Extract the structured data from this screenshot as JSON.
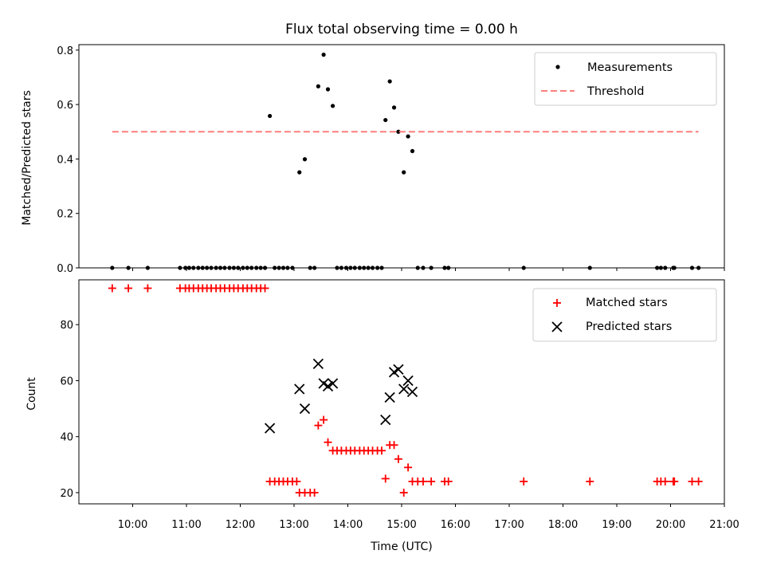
{
  "chart_data": [
    {
      "type": "scatter",
      "title": "Flux total observing time = 0.00 h",
      "xlabel": "",
      "ylabel": "Matched/Predicted stars",
      "xlim": [
        9.0,
        21.0
      ],
      "ylim": [
        0.0,
        0.82
      ],
      "yticks": [
        0.0,
        0.2,
        0.4,
        0.6,
        0.8
      ],
      "ytick_labels": [
        "0.0",
        "0.2",
        "0.4",
        "0.6",
        "0.8"
      ],
      "legend_position": "top-right",
      "grid": false,
      "series": [
        {
          "name": "Measurements",
          "kind": "scatter",
          "marker": "dot",
          "color": "#000000",
          "points": [
            [
              9.62,
              0
            ],
            [
              9.92,
              0
            ],
            [
              10.28,
              0
            ],
            [
              10.88,
              0
            ],
            [
              10.98,
              0
            ],
            [
              11.05,
              0
            ],
            [
              11.13,
              0
            ],
            [
              11.22,
              0
            ],
            [
              11.3,
              0
            ],
            [
              11.38,
              0
            ],
            [
              11.46,
              0
            ],
            [
              11.55,
              0
            ],
            [
              11.63,
              0
            ],
            [
              11.71,
              0
            ],
            [
              11.8,
              0
            ],
            [
              11.88,
              0
            ],
            [
              11.96,
              0
            ],
            [
              12.05,
              0
            ],
            [
              12.13,
              0
            ],
            [
              12.21,
              0
            ],
            [
              12.3,
              0
            ],
            [
              12.38,
              0
            ],
            [
              12.46,
              0
            ],
            [
              12.55,
              0.558
            ],
            [
              12.64,
              0
            ],
            [
              12.72,
              0
            ],
            [
              12.8,
              0
            ],
            [
              12.88,
              0
            ],
            [
              12.97,
              0
            ],
            [
              13.1,
              0.351
            ],
            [
              13.2,
              0.399
            ],
            [
              13.3,
              0
            ],
            [
              13.38,
              0
            ],
            [
              13.45,
              0.667
            ],
            [
              13.55,
              0.783
            ],
            [
              13.63,
              0.656
            ],
            [
              13.72,
              0.595
            ],
            [
              13.8,
              0
            ],
            [
              13.88,
              0
            ],
            [
              13.97,
              0
            ],
            [
              14.05,
              0
            ],
            [
              14.13,
              0
            ],
            [
              14.22,
              0
            ],
            [
              14.3,
              0
            ],
            [
              14.38,
              0
            ],
            [
              14.46,
              0
            ],
            [
              14.55,
              0
            ],
            [
              14.63,
              0
            ],
            [
              14.7,
              0.543
            ],
            [
              14.78,
              0.685
            ],
            [
              14.86,
              0.589
            ],
            [
              14.94,
              0.5
            ],
            [
              15.04,
              0.351
            ],
            [
              15.12,
              0.483
            ],
            [
              15.2,
              0.429
            ],
            [
              15.3,
              0
            ],
            [
              15.4,
              0
            ],
            [
              15.55,
              0
            ],
            [
              15.8,
              0
            ],
            [
              15.87,
              0
            ],
            [
              17.27,
              0
            ],
            [
              18.5,
              0
            ],
            [
              19.75,
              0
            ],
            [
              19.82,
              0
            ],
            [
              19.9,
              0
            ],
            [
              20.05,
              0
            ],
            [
              20.07,
              0
            ],
            [
              20.4,
              0
            ],
            [
              20.52,
              0
            ]
          ]
        },
        {
          "name": "Threshold",
          "kind": "line",
          "style": "dashed",
          "color": "#ff7f7f",
          "points": [
            [
              9.62,
              0.5
            ],
            [
              20.52,
              0.5
            ]
          ]
        }
      ]
    },
    {
      "type": "scatter",
      "title": "",
      "xlabel": "Time (UTC)",
      "ylabel": "Count",
      "xlim": [
        9.0,
        21.0
      ],
      "ylim": [
        16,
        96
      ],
      "yticks": [
        20,
        40,
        60,
        80
      ],
      "ytick_labels": [
        "20",
        "40",
        "60",
        "80"
      ],
      "xticks": [
        10,
        11,
        12,
        13,
        14,
        15,
        16,
        17,
        18,
        19,
        20,
        21
      ],
      "xtick_labels": [
        "10:00",
        "11:00",
        "12:00",
        "13:00",
        "14:00",
        "15:00",
        "16:00",
        "17:00",
        "18:00",
        "19:00",
        "20:00",
        "21:00"
      ],
      "legend_position": "top-right",
      "grid": false,
      "series": [
        {
          "name": "Matched stars",
          "kind": "scatter",
          "marker": "plus",
          "color": "#ff0000",
          "points": [
            [
              9.62,
              93
            ],
            [
              9.92,
              93
            ],
            [
              10.28,
              93
            ],
            [
              10.88,
              93
            ],
            [
              10.98,
              93
            ],
            [
              11.05,
              93
            ],
            [
              11.13,
              93
            ],
            [
              11.22,
              93
            ],
            [
              11.3,
              93
            ],
            [
              11.38,
              93
            ],
            [
              11.46,
              93
            ],
            [
              11.55,
              93
            ],
            [
              11.63,
              93
            ],
            [
              11.71,
              93
            ],
            [
              11.8,
              93
            ],
            [
              11.88,
              93
            ],
            [
              11.96,
              93
            ],
            [
              12.05,
              93
            ],
            [
              12.13,
              93
            ],
            [
              12.21,
              93
            ],
            [
              12.3,
              93
            ],
            [
              12.38,
              93
            ],
            [
              12.46,
              93
            ],
            [
              12.55,
              24
            ],
            [
              12.64,
              24
            ],
            [
              12.72,
              24
            ],
            [
              12.8,
              24
            ],
            [
              12.88,
              24
            ],
            [
              12.97,
              24
            ],
            [
              13.05,
              24
            ],
            [
              13.1,
              20
            ],
            [
              13.2,
              20
            ],
            [
              13.3,
              20
            ],
            [
              13.38,
              20
            ],
            [
              13.45,
              44
            ],
            [
              13.55,
              46
            ],
            [
              13.63,
              38
            ],
            [
              13.72,
              35
            ],
            [
              13.8,
              35
            ],
            [
              13.88,
              35
            ],
            [
              13.97,
              35
            ],
            [
              14.05,
              35
            ],
            [
              14.13,
              35
            ],
            [
              14.22,
              35
            ],
            [
              14.3,
              35
            ],
            [
              14.38,
              35
            ],
            [
              14.46,
              35
            ],
            [
              14.55,
              35
            ],
            [
              14.63,
              35
            ],
            [
              14.7,
              25
            ],
            [
              14.78,
              37
            ],
            [
              14.86,
              37
            ],
            [
              14.94,
              32
            ],
            [
              15.04,
              20
            ],
            [
              15.12,
              29
            ],
            [
              15.2,
              24
            ],
            [
              15.3,
              24
            ],
            [
              15.4,
              24
            ],
            [
              15.55,
              24
            ],
            [
              15.8,
              24
            ],
            [
              15.87,
              24
            ],
            [
              17.27,
              24
            ],
            [
              18.5,
              24
            ],
            [
              19.75,
              24
            ],
            [
              19.82,
              24
            ],
            [
              19.9,
              24
            ],
            [
              20.05,
              24
            ],
            [
              20.07,
              24
            ],
            [
              20.4,
              24
            ],
            [
              20.52,
              24
            ]
          ]
        },
        {
          "name": "Predicted stars",
          "kind": "scatter",
          "marker": "x",
          "color": "#000000",
          "points": [
            [
              12.55,
              43
            ],
            [
              13.1,
              57
            ],
            [
              13.2,
              50
            ],
            [
              13.45,
              66
            ],
            [
              13.55,
              59
            ],
            [
              13.63,
              58
            ],
            [
              13.72,
              59
            ],
            [
              14.7,
              46
            ],
            [
              14.78,
              54
            ],
            [
              14.86,
              63
            ],
            [
              14.94,
              64
            ],
            [
              15.04,
              57
            ],
            [
              15.12,
              60
            ],
            [
              15.2,
              56
            ]
          ]
        }
      ]
    }
  ]
}
